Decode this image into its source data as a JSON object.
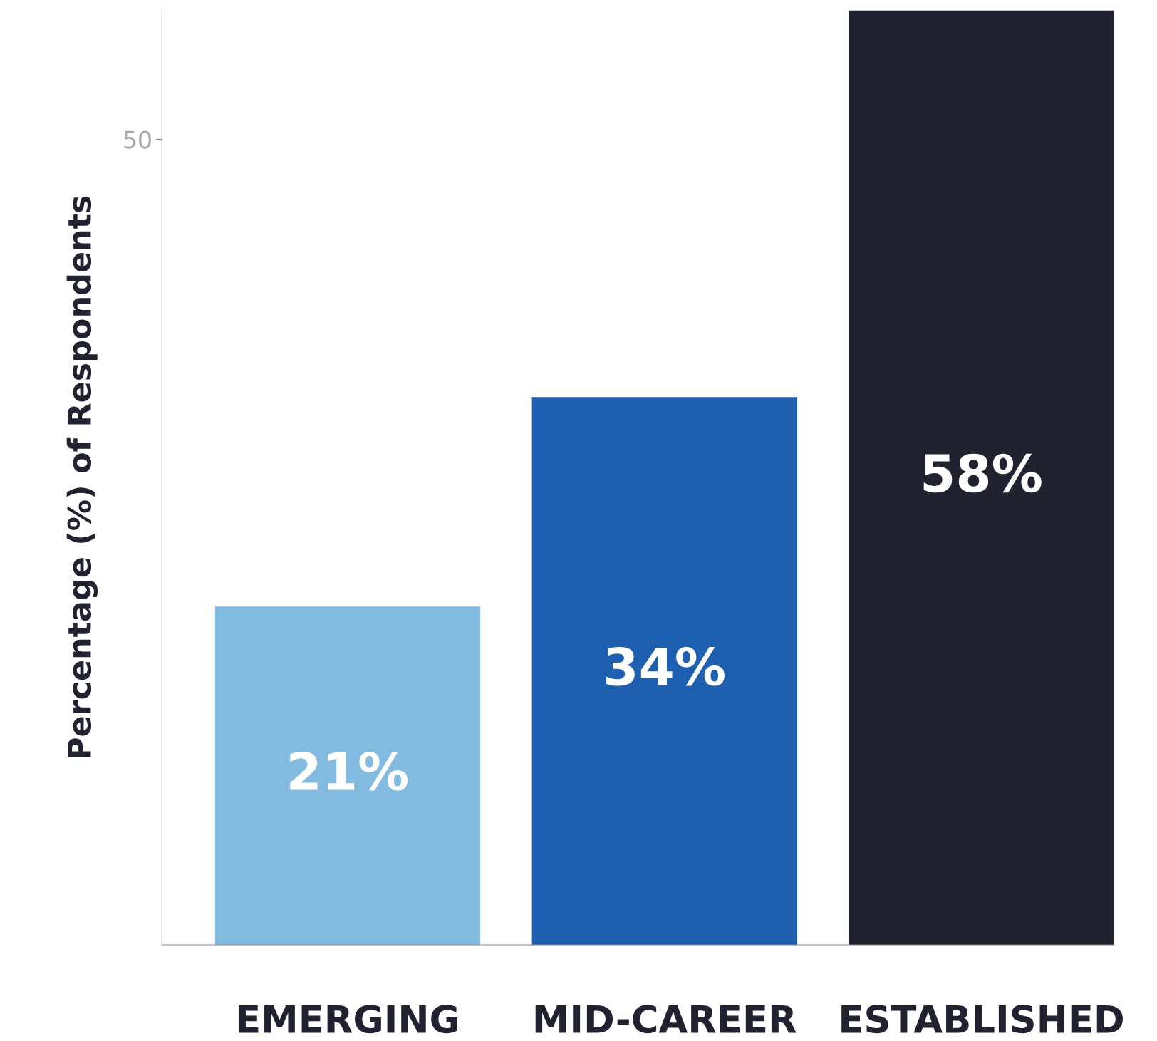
{
  "chart_data": {
    "type": "bar",
    "ylabel": "Percentage (%) of Respondents",
    "categories": [
      "EMERGING",
      "MID-CAREER",
      "ESTABLISHED"
    ],
    "values": [
      21,
      34,
      58
    ],
    "colors": [
      "#82bbdf",
      "#1f5fb0",
      "#20222f"
    ],
    "value_labels": [
      "21%",
      "34%",
      "58%"
    ],
    "ylim": [
      0,
      58
    ],
    "yticks": [
      50
    ],
    "grid": false,
    "legend": false
  }
}
